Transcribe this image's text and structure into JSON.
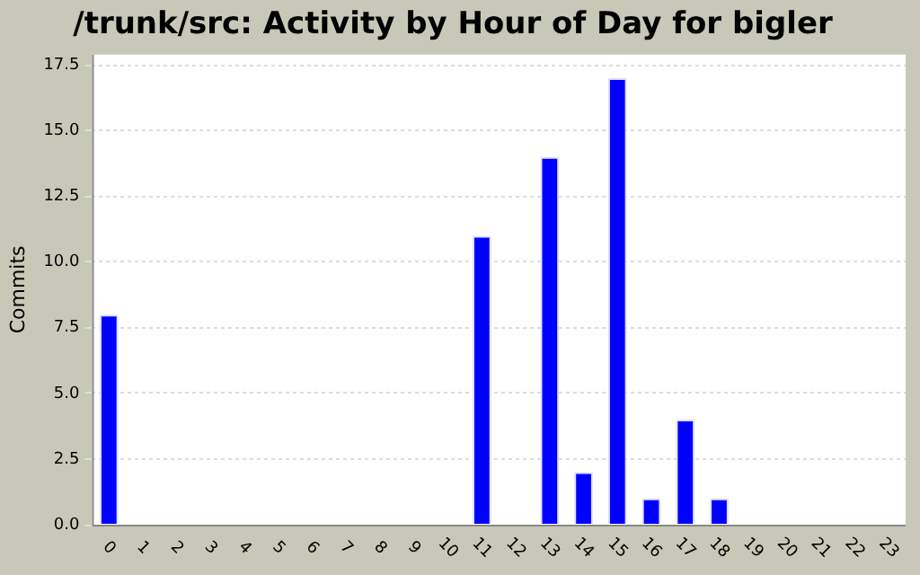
{
  "chart_data": {
    "type": "bar",
    "title": "/trunk/src: Activity by Hour of Day for bigler",
    "ylabel": "Commits",
    "categories": [
      "0",
      "1",
      "2",
      "3",
      "4",
      "5",
      "6",
      "7",
      "8",
      "9",
      "10",
      "11",
      "12",
      "13",
      "14",
      "15",
      "16",
      "17",
      "18",
      "19",
      "20",
      "21",
      "22",
      "23"
    ],
    "values": [
      8,
      0,
      0,
      0,
      0,
      0,
      0,
      0,
      0,
      0,
      0,
      11,
      0,
      14,
      2,
      17,
      1,
      4,
      1,
      0,
      0,
      0,
      0,
      0
    ],
    "color": "#0000ff",
    "ylim": [
      0,
      17.9
    ],
    "yticks": [
      {
        "value": 0,
        "label": "0.0"
      },
      {
        "value": 2.5,
        "label": "2.5"
      },
      {
        "value": 5,
        "label": "5.0"
      },
      {
        "value": 7.5,
        "label": "7.5"
      },
      {
        "value": 10,
        "label": "10.0"
      },
      {
        "value": 12.5,
        "label": "12.5"
      },
      {
        "value": 15,
        "label": "15.0"
      },
      {
        "value": 17.5,
        "label": "17.5"
      }
    ],
    "grid": "y",
    "legend": false
  }
}
